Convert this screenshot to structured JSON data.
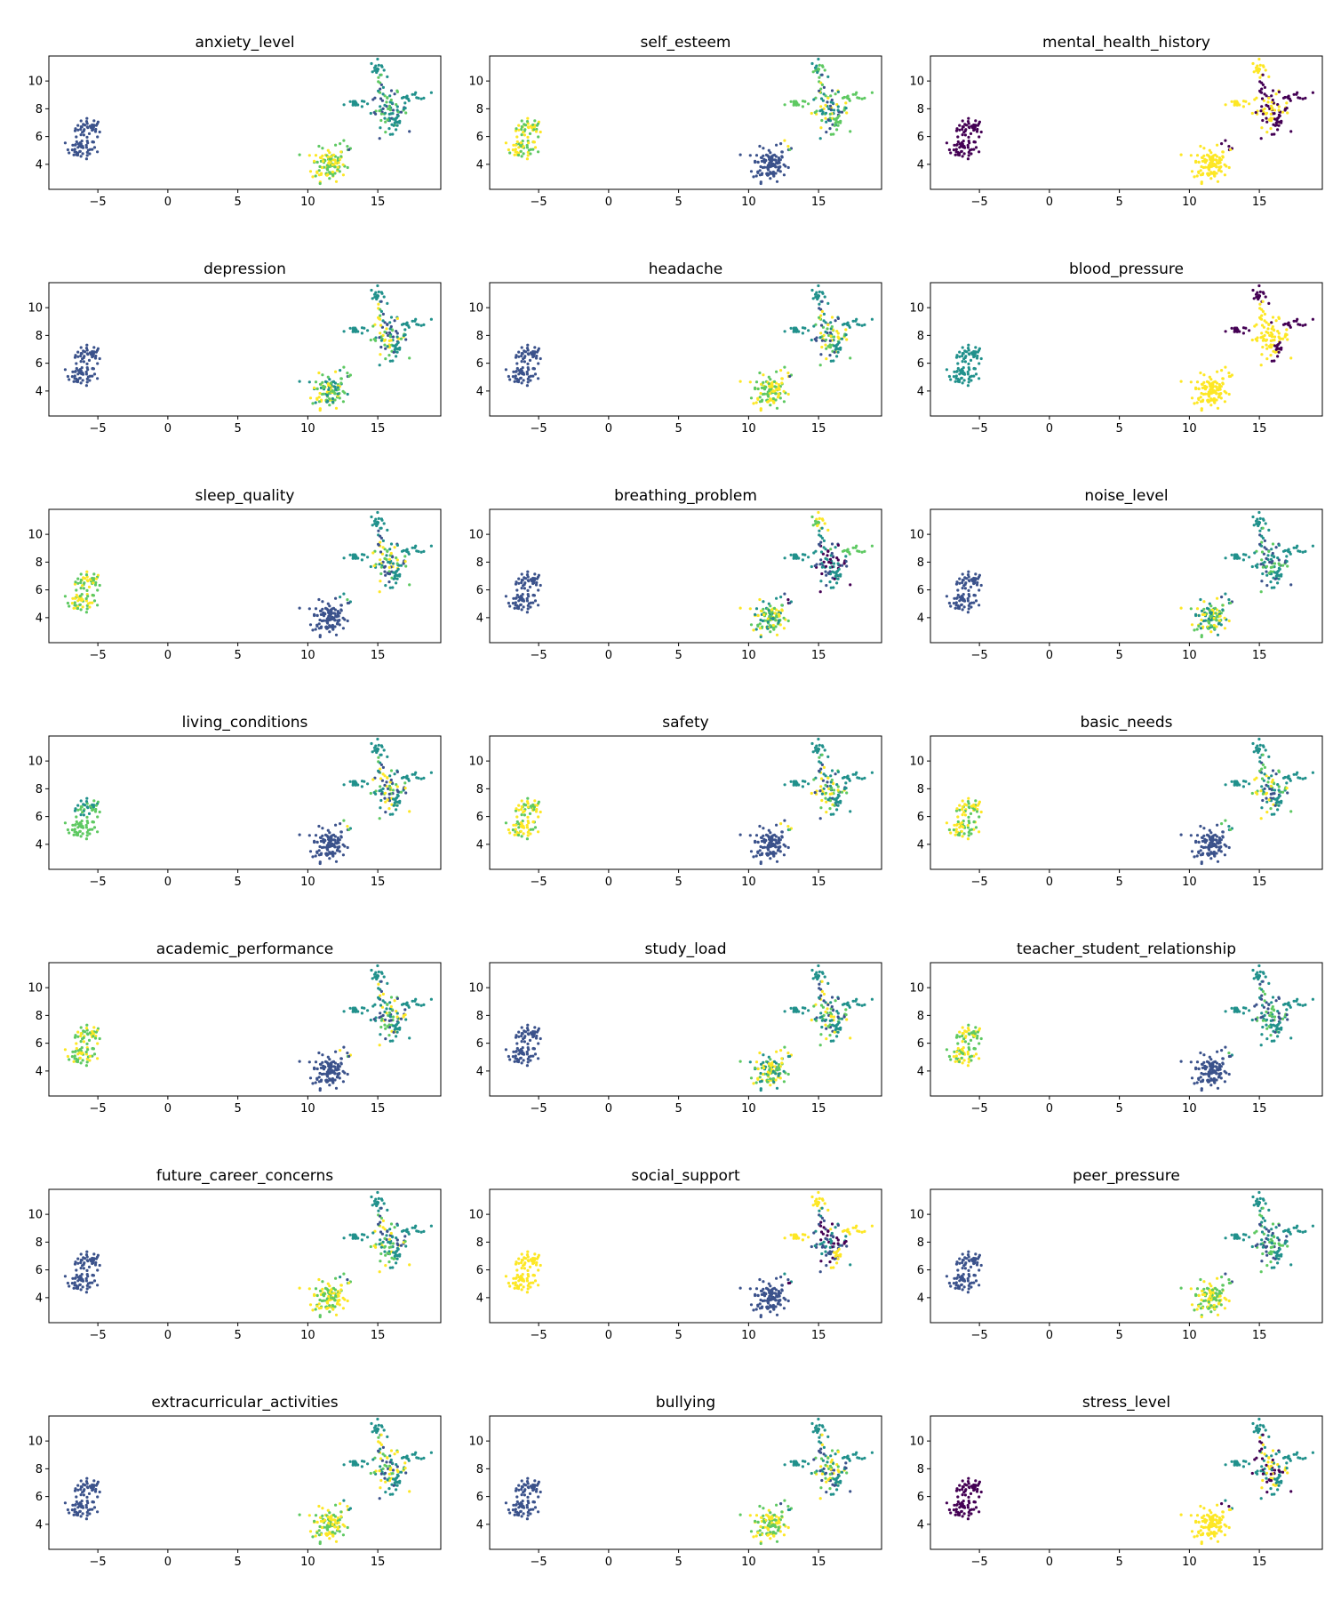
{
  "colormap": [
    "#440154",
    "#3b528b",
    "#21918c",
    "#5ec962",
    "#fde725"
  ],
  "axes": {
    "xlim": [
      -8.5,
      19.5
    ],
    "ylim": [
      2.2,
      11.8
    ],
    "xticks": [
      -5,
      0,
      5,
      10,
      15
    ],
    "xtick_labels": [
      "−5",
      "0",
      "5",
      "10",
      "15"
    ],
    "yticks": [
      4,
      6,
      8,
      10
    ],
    "ytick_labels": [
      "4",
      "6",
      "8",
      "10"
    ]
  },
  "clusters": [
    {
      "name": "cluster-a-upper",
      "cx": -5.6,
      "cy": 6.6,
      "sx": 0.5,
      "sy": 0.35,
      "n": 40
    },
    {
      "name": "cluster-a-lower",
      "cx": -6.2,
      "cy": 5.1,
      "sx": 0.55,
      "sy": 0.35,
      "n": 45
    },
    {
      "name": "cluster-b",
      "cx": 11.5,
      "cy": 4.0,
      "sx": 0.6,
      "sy": 0.6,
      "n": 110
    },
    {
      "name": "cluster-c-top",
      "cx": 15.0,
      "cy": 10.9,
      "sx": 0.25,
      "sy": 0.3,
      "n": 18
    },
    {
      "name": "cluster-c-left",
      "cx": 13.3,
      "cy": 8.4,
      "sx": 0.35,
      "sy": 0.15,
      "n": 18
    },
    {
      "name": "cluster-c-right",
      "cx": 17.6,
      "cy": 8.9,
      "sx": 0.6,
      "sy": 0.15,
      "n": 16
    },
    {
      "name": "cluster-c-core",
      "cx": 15.8,
      "cy": 7.9,
      "sx": 0.65,
      "sy": 0.6,
      "n": 70
    },
    {
      "name": "cluster-c-tail",
      "cx": 16.4,
      "cy": 6.8,
      "sx": 0.25,
      "sy": 0.35,
      "n": 15
    }
  ],
  "chart_data": [
    {
      "type": "scatter",
      "title": "anxiety_level",
      "cluster_colors": [
        [
          1
        ],
        [
          1
        ],
        [
          3,
          4
        ],
        [
          2
        ],
        [
          2
        ],
        [
          2
        ],
        [
          1,
          2,
          3
        ],
        [
          2
        ]
      ]
    },
    {
      "type": "scatter",
      "title": "self_esteem",
      "cluster_colors": [
        [
          3,
          4
        ],
        [
          4,
          3
        ],
        [
          1
        ],
        [
          2,
          3
        ],
        [
          3
        ],
        [
          3
        ],
        [
          1,
          2,
          3,
          4
        ],
        [
          3
        ]
      ]
    },
    {
      "type": "scatter",
      "title": "mental_health_history",
      "cluster_colors": [
        [
          0
        ],
        [
          0
        ],
        [
          4
        ],
        [
          4
        ],
        [
          4
        ],
        [
          0
        ],
        [
          4,
          0
        ],
        [
          0
        ]
      ]
    },
    {
      "type": "scatter",
      "title": "depression",
      "cluster_colors": [
        [
          1
        ],
        [
          1
        ],
        [
          3,
          4,
          2
        ],
        [
          2
        ],
        [
          2
        ],
        [
          2
        ],
        [
          1,
          2,
          3,
          4
        ],
        [
          2
        ]
      ]
    },
    {
      "type": "scatter",
      "title": "headache",
      "cluster_colors": [
        [
          1
        ],
        [
          1
        ],
        [
          3,
          4
        ],
        [
          2
        ],
        [
          2
        ],
        [
          2
        ],
        [
          2,
          1,
          3,
          4
        ],
        [
          2
        ]
      ]
    },
    {
      "type": "scatter",
      "title": "blood_pressure",
      "cluster_colors": [
        [
          2
        ],
        [
          2
        ],
        [
          4
        ],
        [
          0
        ],
        [
          0
        ],
        [
          0
        ],
        [
          4
        ],
        [
          0
        ]
      ]
    },
    {
      "type": "scatter",
      "title": "sleep_quality",
      "cluster_colors": [
        [
          4,
          3
        ],
        [
          4,
          3
        ],
        [
          1
        ],
        [
          2
        ],
        [
          2
        ],
        [
          2
        ],
        [
          1,
          2,
          3,
          4
        ],
        [
          2
        ]
      ]
    },
    {
      "type": "scatter",
      "title": "breathing_problem",
      "cluster_colors": [
        [
          1
        ],
        [
          1
        ],
        [
          4,
          3,
          2
        ],
        [
          3,
          4
        ],
        [
          2
        ],
        [
          3
        ],
        [
          1,
          2,
          0
        ],
        [
          2
        ]
      ]
    },
    {
      "type": "scatter",
      "title": "noise_level",
      "cluster_colors": [
        [
          1
        ],
        [
          1
        ],
        [
          3,
          4,
          2
        ],
        [
          2
        ],
        [
          2
        ],
        [
          2
        ],
        [
          1,
          2,
          3
        ],
        [
          2
        ]
      ]
    },
    {
      "type": "scatter",
      "title": "living_conditions",
      "cluster_colors": [
        [
          2,
          3
        ],
        [
          3
        ],
        [
          1
        ],
        [
          2
        ],
        [
          2
        ],
        [
          2
        ],
        [
          1,
          2,
          3,
          4
        ],
        [
          2
        ]
      ]
    },
    {
      "type": "scatter",
      "title": "safety",
      "cluster_colors": [
        [
          4,
          3
        ],
        [
          3,
          4
        ],
        [
          1
        ],
        [
          2
        ],
        [
          2
        ],
        [
          2
        ],
        [
          1,
          2,
          3,
          4
        ],
        [
          2
        ]
      ]
    },
    {
      "type": "scatter",
      "title": "basic_needs",
      "cluster_colors": [
        [
          4,
          3
        ],
        [
          3,
          4
        ],
        [
          1
        ],
        [
          2
        ],
        [
          2
        ],
        [
          2
        ],
        [
          1,
          2,
          3,
          4
        ],
        [
          2
        ]
      ]
    },
    {
      "type": "scatter",
      "title": "academic_performance",
      "cluster_colors": [
        [
          4,
          3
        ],
        [
          3,
          4
        ],
        [
          1
        ],
        [
          2
        ],
        [
          2
        ],
        [
          2
        ],
        [
          1,
          2,
          3,
          4
        ],
        [
          2
        ]
      ]
    },
    {
      "type": "scatter",
      "title": "study_load",
      "cluster_colors": [
        [
          1
        ],
        [
          1
        ],
        [
          4,
          3,
          2
        ],
        [
          2
        ],
        [
          2
        ],
        [
          2
        ],
        [
          1,
          2,
          3,
          4
        ],
        [
          2
        ]
      ]
    },
    {
      "type": "scatter",
      "title": "teacher_student_relationship",
      "cluster_colors": [
        [
          4,
          3
        ],
        [
          3,
          4
        ],
        [
          1
        ],
        [
          2
        ],
        [
          2
        ],
        [
          2
        ],
        [
          1,
          2,
          3
        ],
        [
          2
        ]
      ]
    },
    {
      "type": "scatter",
      "title": "future_career_concerns",
      "cluster_colors": [
        [
          1
        ],
        [
          1
        ],
        [
          4,
          3
        ],
        [
          2
        ],
        [
          2
        ],
        [
          2
        ],
        [
          1,
          2,
          3,
          4
        ],
        [
          2
        ]
      ]
    },
    {
      "type": "scatter",
      "title": "social_support",
      "cluster_colors": [
        [
          4
        ],
        [
          4
        ],
        [
          1
        ],
        [
          4
        ],
        [
          4
        ],
        [
          4
        ],
        [
          0,
          1,
          2
        ],
        [
          4
        ]
      ]
    },
    {
      "type": "scatter",
      "title": "peer_pressure",
      "cluster_colors": [
        [
          1
        ],
        [
          1
        ],
        [
          4,
          3
        ],
        [
          2
        ],
        [
          2
        ],
        [
          2
        ],
        [
          1,
          2,
          3
        ],
        [
          2
        ]
      ]
    },
    {
      "type": "scatter",
      "title": "extracurricular_activities",
      "cluster_colors": [
        [
          1
        ],
        [
          1
        ],
        [
          4,
          3
        ],
        [
          2
        ],
        [
          2
        ],
        [
          2
        ],
        [
          1,
          2,
          3,
          4
        ],
        [
          2
        ]
      ]
    },
    {
      "type": "scatter",
      "title": "bullying",
      "cluster_colors": [
        [
          1
        ],
        [
          1
        ],
        [
          4,
          3
        ],
        [
          2
        ],
        [
          2
        ],
        [
          2
        ],
        [
          1,
          2,
          3,
          4
        ],
        [
          2
        ]
      ]
    },
    {
      "type": "scatter",
      "title": "stress_level",
      "cluster_colors": [
        [
          0
        ],
        [
          0
        ],
        [
          4
        ],
        [
          2
        ],
        [
          2
        ],
        [
          2
        ],
        [
          0,
          2,
          4
        ],
        [
          2
        ]
      ]
    }
  ]
}
